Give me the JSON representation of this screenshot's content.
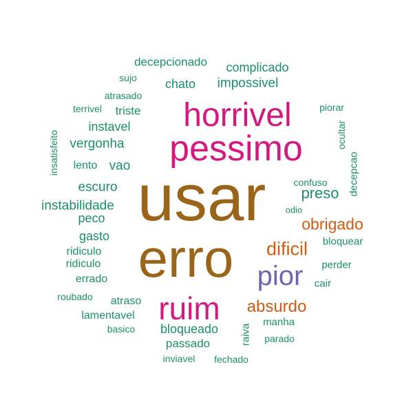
{
  "colors": {
    "brown": "#9B6519",
    "magenta": "#D4187F",
    "orange": "#D35A0F",
    "purple": "#7263AE",
    "green": "#1B8F6A"
  },
  "words": [
    {
      "text": "usar",
      "color": "brown"
    },
    {
      "text": "erro",
      "color": "brown"
    },
    {
      "text": "horrivel",
      "color": "magenta"
    },
    {
      "text": "pessimo",
      "color": "magenta"
    },
    {
      "text": "ruim",
      "color": "magenta"
    },
    {
      "text": "pior",
      "color": "purple"
    },
    {
      "text": "absurdo",
      "color": "orange"
    },
    {
      "text": "dificil",
      "color": "orange"
    },
    {
      "text": "obrigado",
      "color": "orange"
    },
    {
      "text": "preso",
      "color": "green"
    },
    {
      "text": "impossivel",
      "color": "green"
    },
    {
      "text": "complicado",
      "color": "green"
    },
    {
      "text": "decepcionado",
      "color": "green"
    },
    {
      "text": "chato",
      "color": "green"
    },
    {
      "text": "sujo",
      "color": "green"
    },
    {
      "text": "atrasado",
      "color": "green"
    },
    {
      "text": "terrivel",
      "color": "green"
    },
    {
      "text": "triste",
      "color": "green"
    },
    {
      "text": "instavel",
      "color": "green"
    },
    {
      "text": "vergonha",
      "color": "green"
    },
    {
      "text": "lento",
      "color": "green"
    },
    {
      "text": "vao",
      "color": "green"
    },
    {
      "text": "escuro",
      "color": "green"
    },
    {
      "text": "instabilidade",
      "color": "green"
    },
    {
      "text": "peco",
      "color": "green"
    },
    {
      "text": "gasto",
      "color": "green"
    },
    {
      "text": "ridiculo",
      "color": "green"
    },
    {
      "text": "ridiculo",
      "color": "green"
    },
    {
      "text": "errado",
      "color": "green"
    },
    {
      "text": "roubado",
      "color": "green"
    },
    {
      "text": "atraso",
      "color": "green"
    },
    {
      "text": "lamentavel",
      "color": "green"
    },
    {
      "text": "basico",
      "color": "green"
    },
    {
      "text": "bloqueado",
      "color": "green"
    },
    {
      "text": "passado",
      "color": "green"
    },
    {
      "text": "inviavel",
      "color": "green"
    },
    {
      "text": "fechado",
      "color": "green"
    },
    {
      "text": "raiva",
      "color": "green",
      "vertical": true
    },
    {
      "text": "parado",
      "color": "green"
    },
    {
      "text": "manha",
      "color": "green"
    },
    {
      "text": "cair",
      "color": "green"
    },
    {
      "text": "perder",
      "color": "green"
    },
    {
      "text": "bloquear",
      "color": "green"
    },
    {
      "text": "odio",
      "color": "green"
    },
    {
      "text": "confuso",
      "color": "green"
    },
    {
      "text": "decepcao",
      "color": "green",
      "vertical": true
    },
    {
      "text": "ocultar",
      "color": "green",
      "vertical": true
    },
    {
      "text": "piorar",
      "color": "green"
    },
    {
      "text": "insatisfeito",
      "color": "green",
      "vertical": true
    }
  ]
}
